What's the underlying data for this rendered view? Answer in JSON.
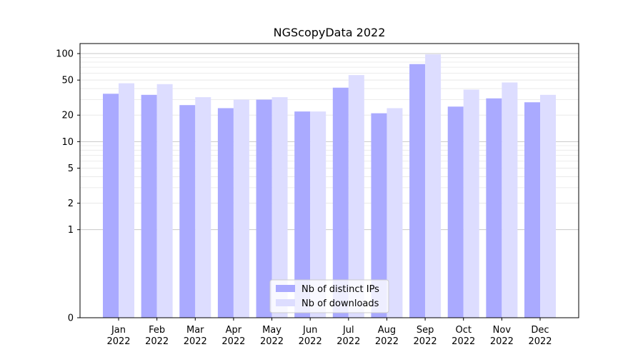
{
  "chart_data": {
    "type": "bar",
    "title": "NGScopyData 2022",
    "xlabel": "",
    "ylabel": "",
    "y_scale": "symlog",
    "ylim": [
      0,
      130
    ],
    "y_ticks": [
      0,
      1,
      2,
      5,
      10,
      20,
      50,
      100
    ],
    "grid": true,
    "legend_position": "bottom-center",
    "categories": [
      [
        "Jan",
        "2022"
      ],
      [
        "Feb",
        "2022"
      ],
      [
        "Mar",
        "2022"
      ],
      [
        "Apr",
        "2022"
      ],
      [
        "May",
        "2022"
      ],
      [
        "Jun",
        "2022"
      ],
      [
        "Jul",
        "2022"
      ],
      [
        "Aug",
        "2022"
      ],
      [
        "Sep",
        "2022"
      ],
      [
        "Oct",
        "2022"
      ],
      [
        "Nov",
        "2022"
      ],
      [
        "Dec",
        "2022"
      ]
    ],
    "series": [
      {
        "name": "Nb of distinct IPs",
        "color": "#aaaaff",
        "values": [
          35,
          34,
          26,
          24,
          30,
          22,
          41,
          21,
          76,
          25,
          31,
          28
        ]
      },
      {
        "name": "Nb of downloads",
        "color": "#ddddff",
        "values": [
          46,
          45,
          32,
          30,
          32,
          22,
          57,
          24,
          98,
          39,
          47,
          34
        ]
      }
    ]
  }
}
